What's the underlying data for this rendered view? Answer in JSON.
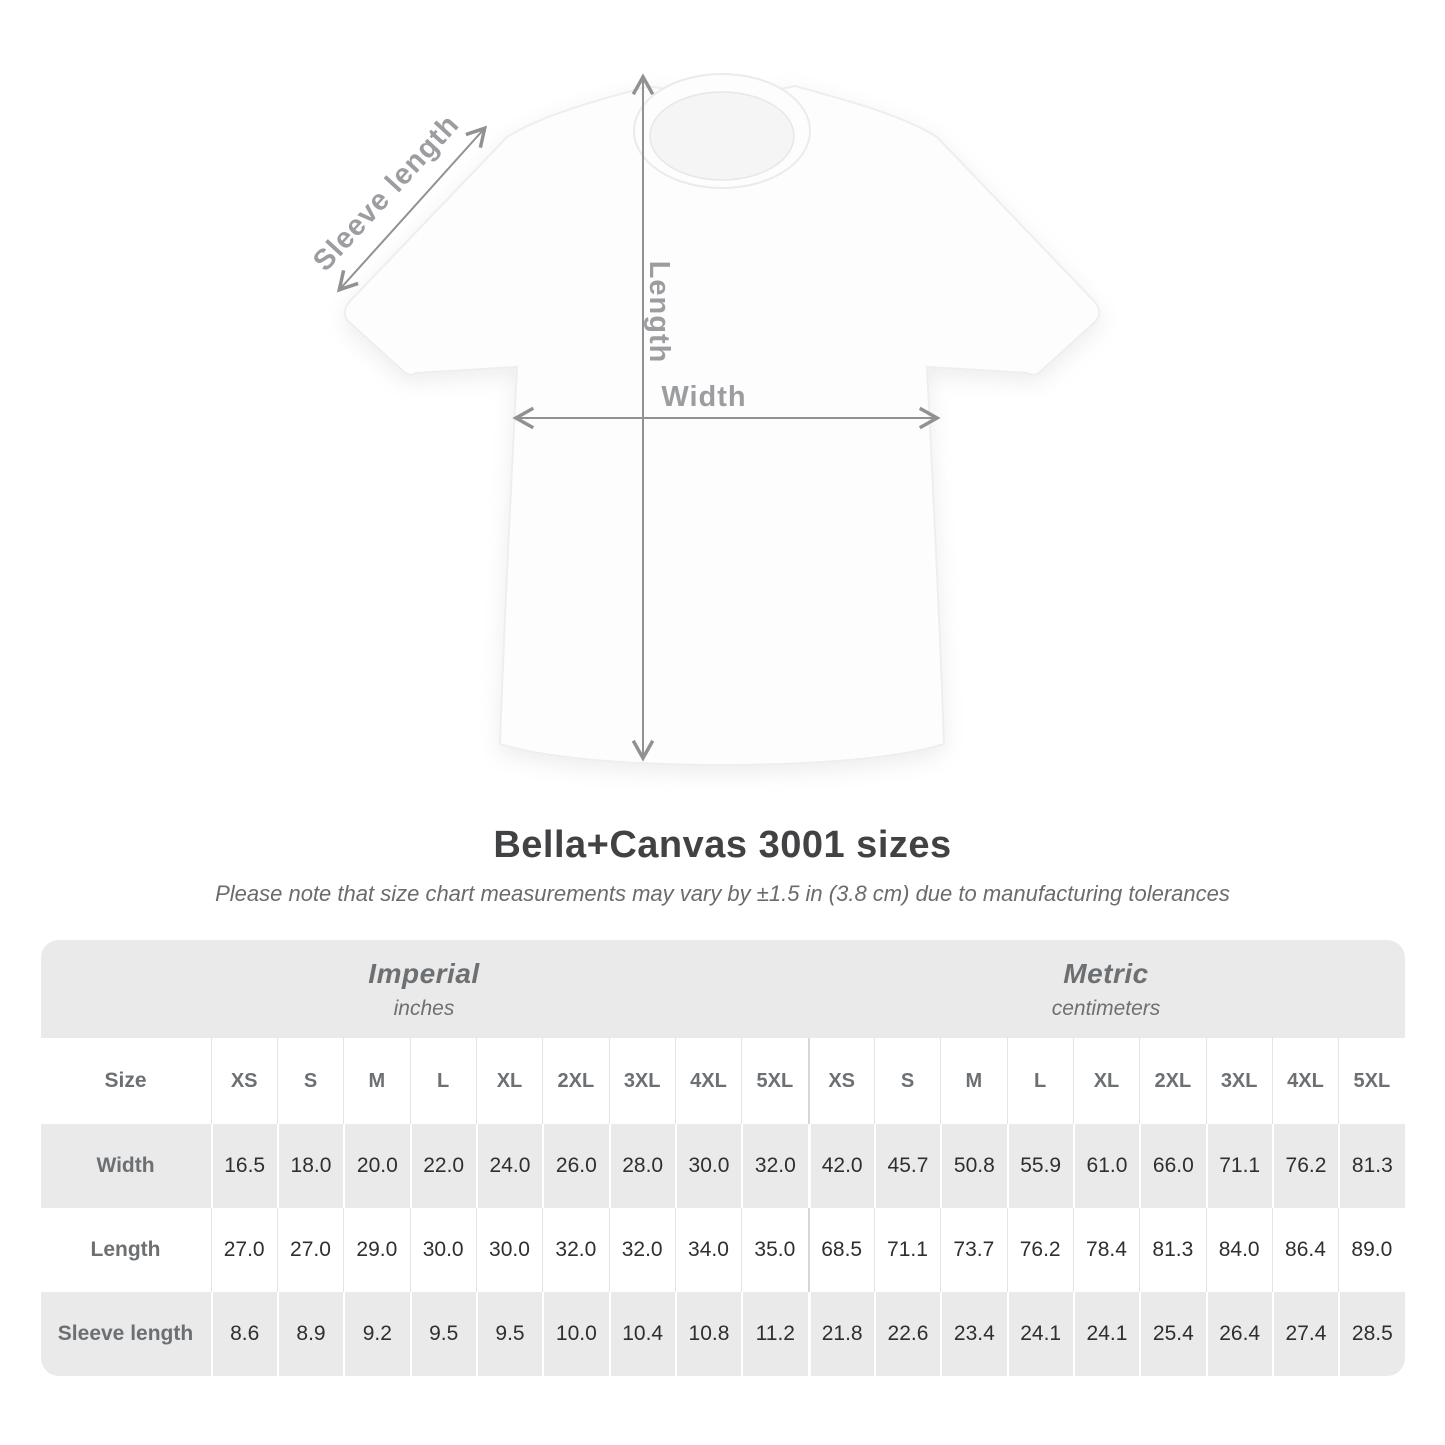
{
  "title": "Bella+Canvas 3001 sizes",
  "subtitle": "Please note that size chart measurements may vary by ±1.5 in (3.8 cm) due to manufacturing tolerances",
  "diagram": {
    "sleeve_label": "Sleeve length",
    "length_label": "Length",
    "width_label": "Width",
    "arrow_color": "#8f9193",
    "label_color": "#9b9da0"
  },
  "table": {
    "size_label": "Size",
    "sizes": [
      "XS",
      "S",
      "M",
      "L",
      "XL",
      "2XL",
      "3XL",
      "4XL",
      "5XL"
    ],
    "unit_groups": [
      {
        "name": "Imperial",
        "unit": "inches"
      },
      {
        "name": "Metric",
        "unit": "centimeters"
      }
    ],
    "rows": [
      {
        "label": "Width",
        "imperial": [
          "16.5",
          "18.0",
          "20.0",
          "22.0",
          "24.0",
          "26.0",
          "28.0",
          "30.0",
          "32.0"
        ],
        "metric": [
          "42.0",
          "45.7",
          "50.8",
          "55.9",
          "61.0",
          "66.0",
          "71.1",
          "76.2",
          "81.3"
        ]
      },
      {
        "label": "Length",
        "imperial": [
          "27.0",
          "27.0",
          "29.0",
          "30.0",
          "30.0",
          "32.0",
          "32.0",
          "34.0",
          "35.0"
        ],
        "metric": [
          "68.5",
          "71.1",
          "73.7",
          "76.2",
          "78.4",
          "81.3",
          "84.0",
          "86.4",
          "89.0"
        ]
      },
      {
        "label": "Sleeve length",
        "imperial": [
          "8.6",
          "8.9",
          "9.2",
          "9.5",
          "9.5",
          "10.0",
          "10.4",
          "10.8",
          "11.2"
        ],
        "metric": [
          "21.8",
          "22.6",
          "23.4",
          "24.1",
          "24.1",
          "25.4",
          "26.4",
          "27.4",
          "28.5"
        ]
      }
    ]
  },
  "chart_data": {
    "type": "table",
    "title": "Bella+Canvas 3001 sizes",
    "note": "Please note that size chart measurements may vary by ±1.5 in (3.8 cm) due to manufacturing tolerances",
    "column_groups": [
      {
        "name": "Imperial",
        "unit": "inches"
      },
      {
        "name": "Metric",
        "unit": "centimeters"
      }
    ],
    "sizes": [
      "XS",
      "S",
      "M",
      "L",
      "XL",
      "2XL",
      "3XL",
      "4XL",
      "5XL"
    ],
    "rows": [
      {
        "label": "Width",
        "imperial": [
          16.5,
          18.0,
          20.0,
          22.0,
          24.0,
          26.0,
          28.0,
          30.0,
          32.0
        ],
        "metric": [
          42.0,
          45.7,
          50.8,
          55.9,
          61.0,
          66.0,
          71.1,
          76.2,
          81.3
        ]
      },
      {
        "label": "Length",
        "imperial": [
          27.0,
          27.0,
          29.0,
          30.0,
          30.0,
          32.0,
          32.0,
          34.0,
          35.0
        ],
        "metric": [
          68.5,
          71.1,
          73.7,
          76.2,
          78.4,
          81.3,
          84.0,
          86.4,
          89.0
        ]
      },
      {
        "label": "Sleeve length",
        "imperial": [
          8.6,
          8.9,
          9.2,
          9.5,
          9.5,
          10.0,
          10.4,
          10.8,
          11.2
        ],
        "metric": [
          21.8,
          22.6,
          23.4,
          24.1,
          24.1,
          25.4,
          26.4,
          27.4,
          28.5
        ]
      }
    ]
  }
}
